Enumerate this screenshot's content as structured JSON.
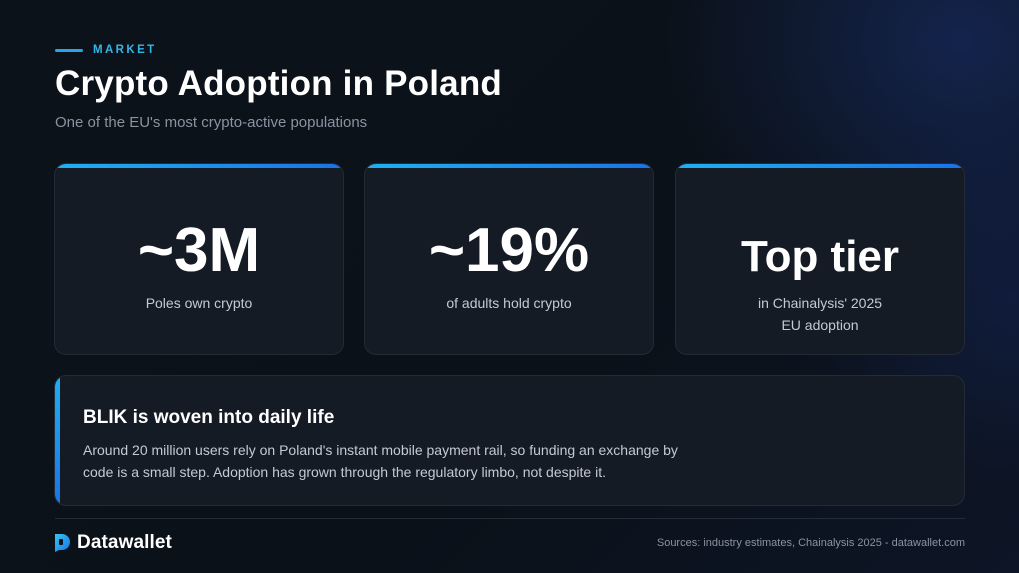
{
  "header": {
    "eyebrow": "MARKET",
    "title": "Crypto Adoption in Poland",
    "subtitle": "One of the EU's most crypto-active populations"
  },
  "stats": [
    {
      "value": "~3M",
      "label_lines": [
        "Poles own crypto"
      ]
    },
    {
      "value": "~19%",
      "label_lines": [
        "of adults hold crypto"
      ]
    },
    {
      "value": "Top tier",
      "label_lines": [
        "in Chainalysis' 2025",
        "EU adoption"
      ]
    }
  ],
  "callout": {
    "title": "BLIK is woven into daily life",
    "body_lines": [
      "Around 20 million users rely on Poland's instant mobile payment rail, so funding an exchange by",
      "code is a small step. Adoption has grown through the regulatory limbo, not despite it."
    ]
  },
  "footer": {
    "brand": "Datawallet",
    "sources": "Sources: industry estimates, Chainalysis 2025 - datawallet.com"
  },
  "colors": {
    "accent": "#2aa3e8",
    "background": "#0b1119",
    "card": "#151b25"
  }
}
